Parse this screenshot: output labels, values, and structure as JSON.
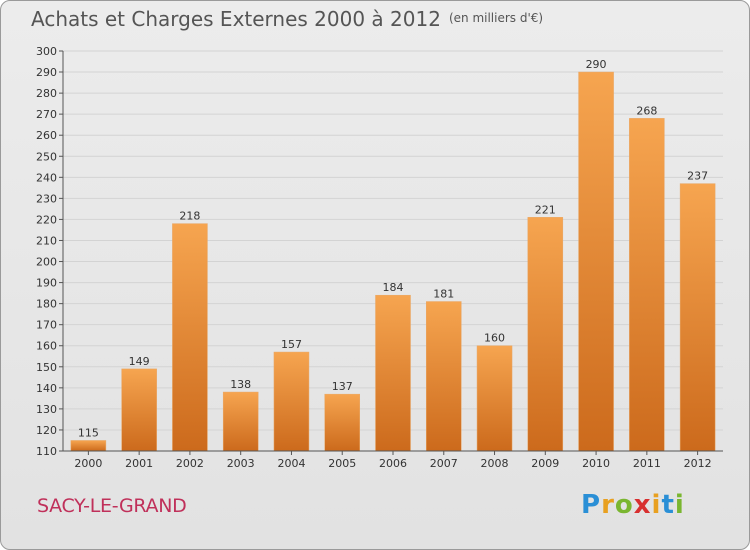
{
  "header": {
    "title": "Achats et Charges Externes 2000 à 2012",
    "unit": "(en milliers d'€)"
  },
  "location": "SACY-LE-GRAND",
  "brand": {
    "letters": [
      "P",
      "r",
      "o",
      "x",
      "i",
      "t",
      "i"
    ],
    "colors": [
      "#2a8fd6",
      "#e8a020",
      "#7ab630",
      "#d83030",
      "#e8a020",
      "#2a8fd6",
      "#7ab630"
    ]
  },
  "colors": {
    "bar_top": "#f6a550",
    "bar_bottom": "#cc6a1c",
    "grid": "#d3d3d3",
    "axis_text": "#333333"
  },
  "chart_data": {
    "type": "bar",
    "categories": [
      "2000",
      "2001",
      "2002",
      "2003",
      "2004",
      "2005",
      "2006",
      "2007",
      "2008",
      "2009",
      "2010",
      "2011",
      "2012"
    ],
    "values": [
      115,
      149,
      218,
      138,
      157,
      137,
      184,
      181,
      160,
      221,
      290,
      268,
      237
    ],
    "ylim": [
      110,
      300
    ],
    "yticks": [
      110,
      120,
      130,
      140,
      150,
      160,
      170,
      180,
      190,
      200,
      210,
      220,
      230,
      240,
      250,
      260,
      270,
      280,
      290,
      300
    ],
    "grid": "horizontal"
  }
}
